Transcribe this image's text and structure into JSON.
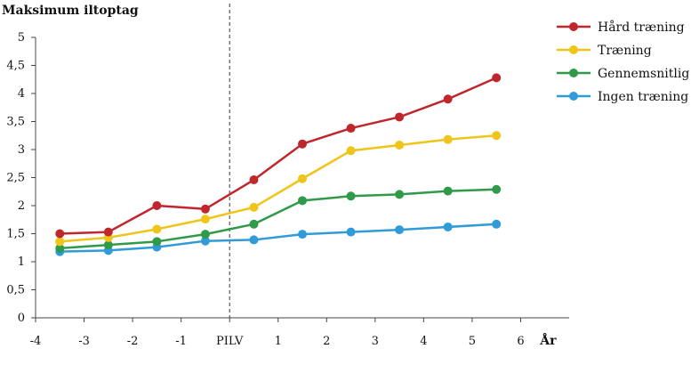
{
  "chart_data": {
    "type": "line",
    "title": "Maksimum iltoptag",
    "xlabel": "År",
    "ylabel": "Maksimum iltoptag",
    "xlim": [
      -4,
      7
    ],
    "ylim": [
      0,
      5
    ],
    "y_ticks": [
      {
        "value": 0,
        "label": "0"
      },
      {
        "value": 0.5,
        "label": "0,5"
      },
      {
        "value": 1,
        "label": "1"
      },
      {
        "value": 1.5,
        "label": "1,5"
      },
      {
        "value": 2,
        "label": "2"
      },
      {
        "value": 2.5,
        "label": "2,5"
      },
      {
        "value": 3,
        "label": "3"
      },
      {
        "value": 3.5,
        "label": "3,5"
      },
      {
        "value": 4,
        "label": "4"
      },
      {
        "value": 4.5,
        "label": "4,5"
      },
      {
        "value": 5,
        "label": "5"
      }
    ],
    "x_ticks": [
      {
        "value": -4,
        "label": "-4"
      },
      {
        "value": -3,
        "label": "-3"
      },
      {
        "value": -2,
        "label": "-2"
      },
      {
        "value": -1,
        "label": "-1"
      },
      {
        "value": 0,
        "label": "PILV"
      },
      {
        "value": 1,
        "label": "1"
      },
      {
        "value": 2,
        "label": "2"
      },
      {
        "value": 3,
        "label": "3"
      },
      {
        "value": 4,
        "label": "4"
      },
      {
        "value": 5,
        "label": "5"
      },
      {
        "value": 6,
        "label": "6"
      }
    ],
    "divider_x": 0,
    "x": [
      -3.5,
      -2.5,
      -1.5,
      -0.5,
      0.5,
      1.5,
      2.5,
      3.5,
      4.5,
      5.5
    ],
    "series": [
      {
        "name": "Hård træning",
        "color": "#c0272d",
        "values": [
          1.5,
          1.53,
          2.0,
          1.94,
          2.46,
          3.1,
          3.38,
          3.58,
          3.9,
          4.28
        ]
      },
      {
        "name": "Træning",
        "color": "#f0c419",
        "values": [
          1.36,
          1.43,
          1.58,
          1.76,
          1.97,
          2.48,
          2.98,
          3.08,
          3.18,
          3.25
        ]
      },
      {
        "name": "Gennemsnitlig",
        "color": "#2f9a48",
        "values": [
          1.24,
          1.3,
          1.36,
          1.49,
          1.67,
          2.09,
          2.17,
          2.2,
          2.26,
          2.29
        ]
      },
      {
        "name": "Ingen træning",
        "color": "#2f9bd8",
        "values": [
          1.18,
          1.2,
          1.26,
          1.37,
          1.39,
          1.49,
          1.53,
          1.57,
          1.62,
          1.67
        ]
      }
    ],
    "legend_position": "top-right",
    "grid": false
  }
}
